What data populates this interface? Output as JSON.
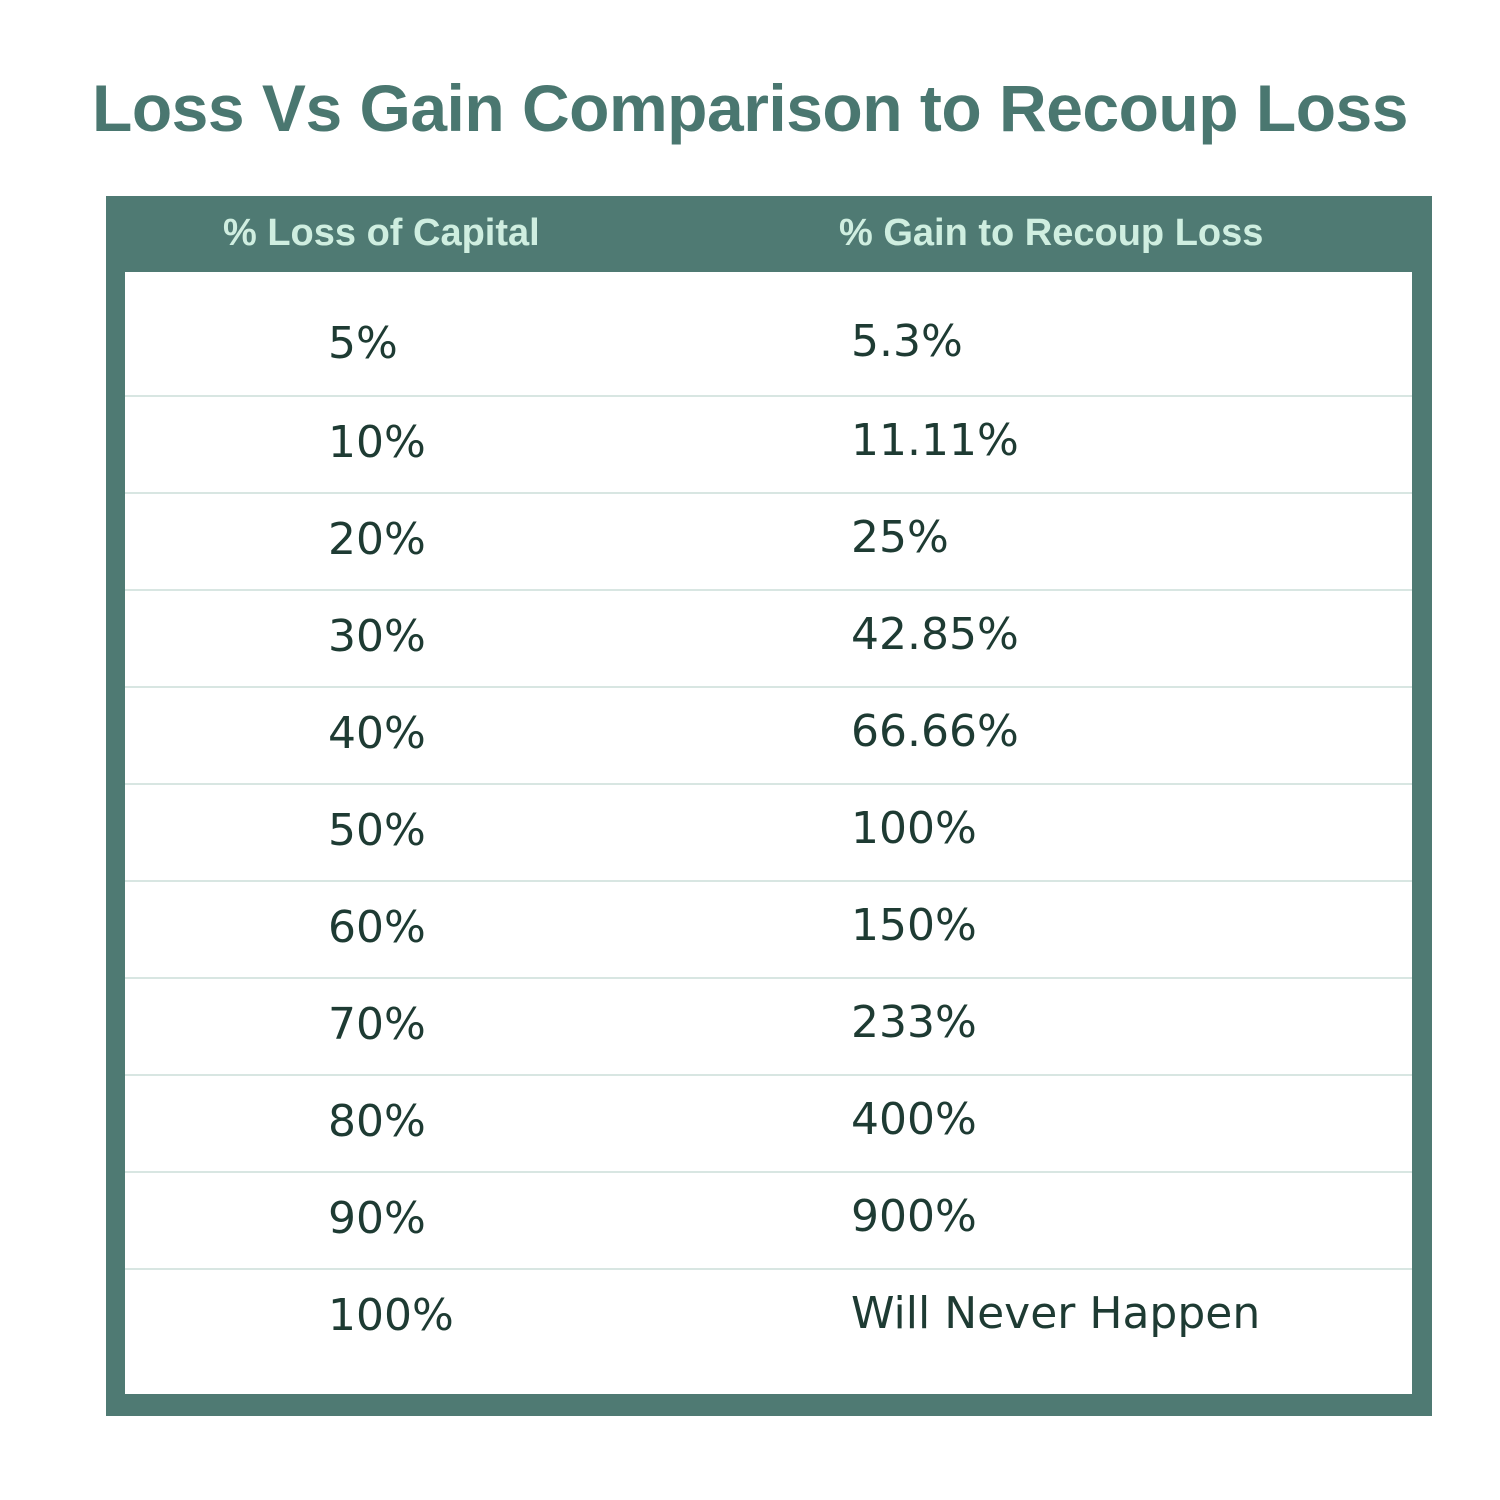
{
  "title": "Loss Vs Gain Comparison to Recoup Loss",
  "colors": {
    "title": "#4a7770",
    "frame": "#4f7a73",
    "header_text": "#cfeee0",
    "cell_text": "#1e3b33",
    "row_divider": "#d8e6e2"
  },
  "table": {
    "headers": [
      "% Loss of Capital",
      "% Gain to Recoup Loss"
    ],
    "rows": [
      [
        "5%",
        "5.3%"
      ],
      [
        "10%",
        "11.11%"
      ],
      [
        "20%",
        "25%"
      ],
      [
        "30%",
        "42.85%"
      ],
      [
        "40%",
        "66.66%"
      ],
      [
        "50%",
        "100%"
      ],
      [
        "60%",
        "150%"
      ],
      [
        "70%",
        "233%"
      ],
      [
        "80%",
        "400%"
      ],
      [
        "90%",
        "900%"
      ],
      [
        "100%",
        "Will Never Happen"
      ]
    ]
  }
}
